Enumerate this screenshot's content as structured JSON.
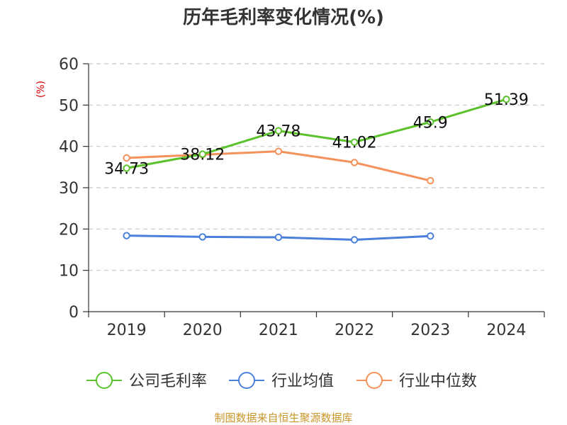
{
  "chart_data": {
    "type": "line",
    "title": "历年毛利率变化情况(%)",
    "ylabel": "(%)",
    "xlabel": "",
    "categories": [
      "2019",
      "2020",
      "2021",
      "2022",
      "2023",
      "2024"
    ],
    "ylim": [
      0,
      60
    ],
    "yticks": [
      0,
      10,
      20,
      30,
      40,
      50,
      60
    ],
    "grid": true,
    "legend_position": "bottom",
    "series": [
      {
        "name": "公司毛利率",
        "color": "#5bc22c",
        "values": [
          34.73,
          38.12,
          43.78,
          41.02,
          45.9,
          51.39
        ],
        "labels": [
          "34.73",
          "38.12",
          "43.78",
          "41.02",
          "45.9",
          "51.39"
        ]
      },
      {
        "name": "行业均值",
        "color": "#4a7fdb",
        "values": [
          18.4,
          18.1,
          18.0,
          17.4,
          18.3,
          null
        ]
      },
      {
        "name": "行业中位数",
        "color": "#f5915a",
        "values": [
          37.2,
          38.0,
          38.8,
          36.1,
          31.7,
          null
        ]
      }
    ]
  },
  "source_note": "制图数据来自恒生聚源数据库"
}
